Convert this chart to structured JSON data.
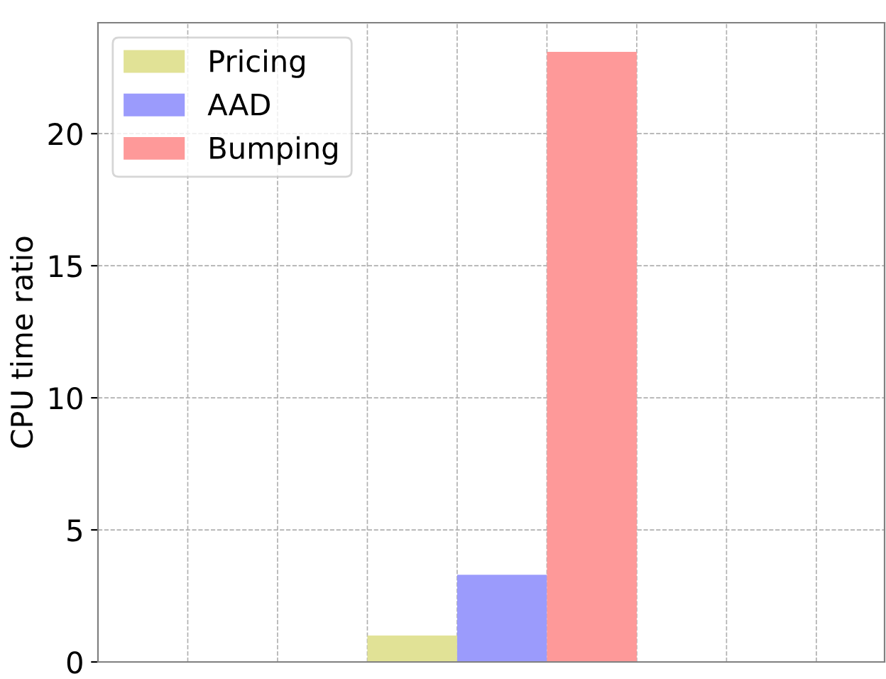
{
  "chart_data": {
    "type": "bar",
    "ylabel": "CPU time ratio",
    "categories": [
      null
    ],
    "series": [
      {
        "name": "Pricing",
        "color": "#e1e296",
        "values": [
          1.0
        ]
      },
      {
        "name": "AAD",
        "color": "#9b9bfc",
        "values": [
          3.3
        ]
      },
      {
        "name": "Bumping",
        "color": "#fe9999",
        "values": [
          23.1
        ]
      }
    ],
    "ylim": [
      0,
      24.2
    ],
    "yticks": [
      0,
      5,
      10,
      15,
      20
    ],
    "tick_labels": "y",
    "grid": true,
    "legend": "top left"
  }
}
